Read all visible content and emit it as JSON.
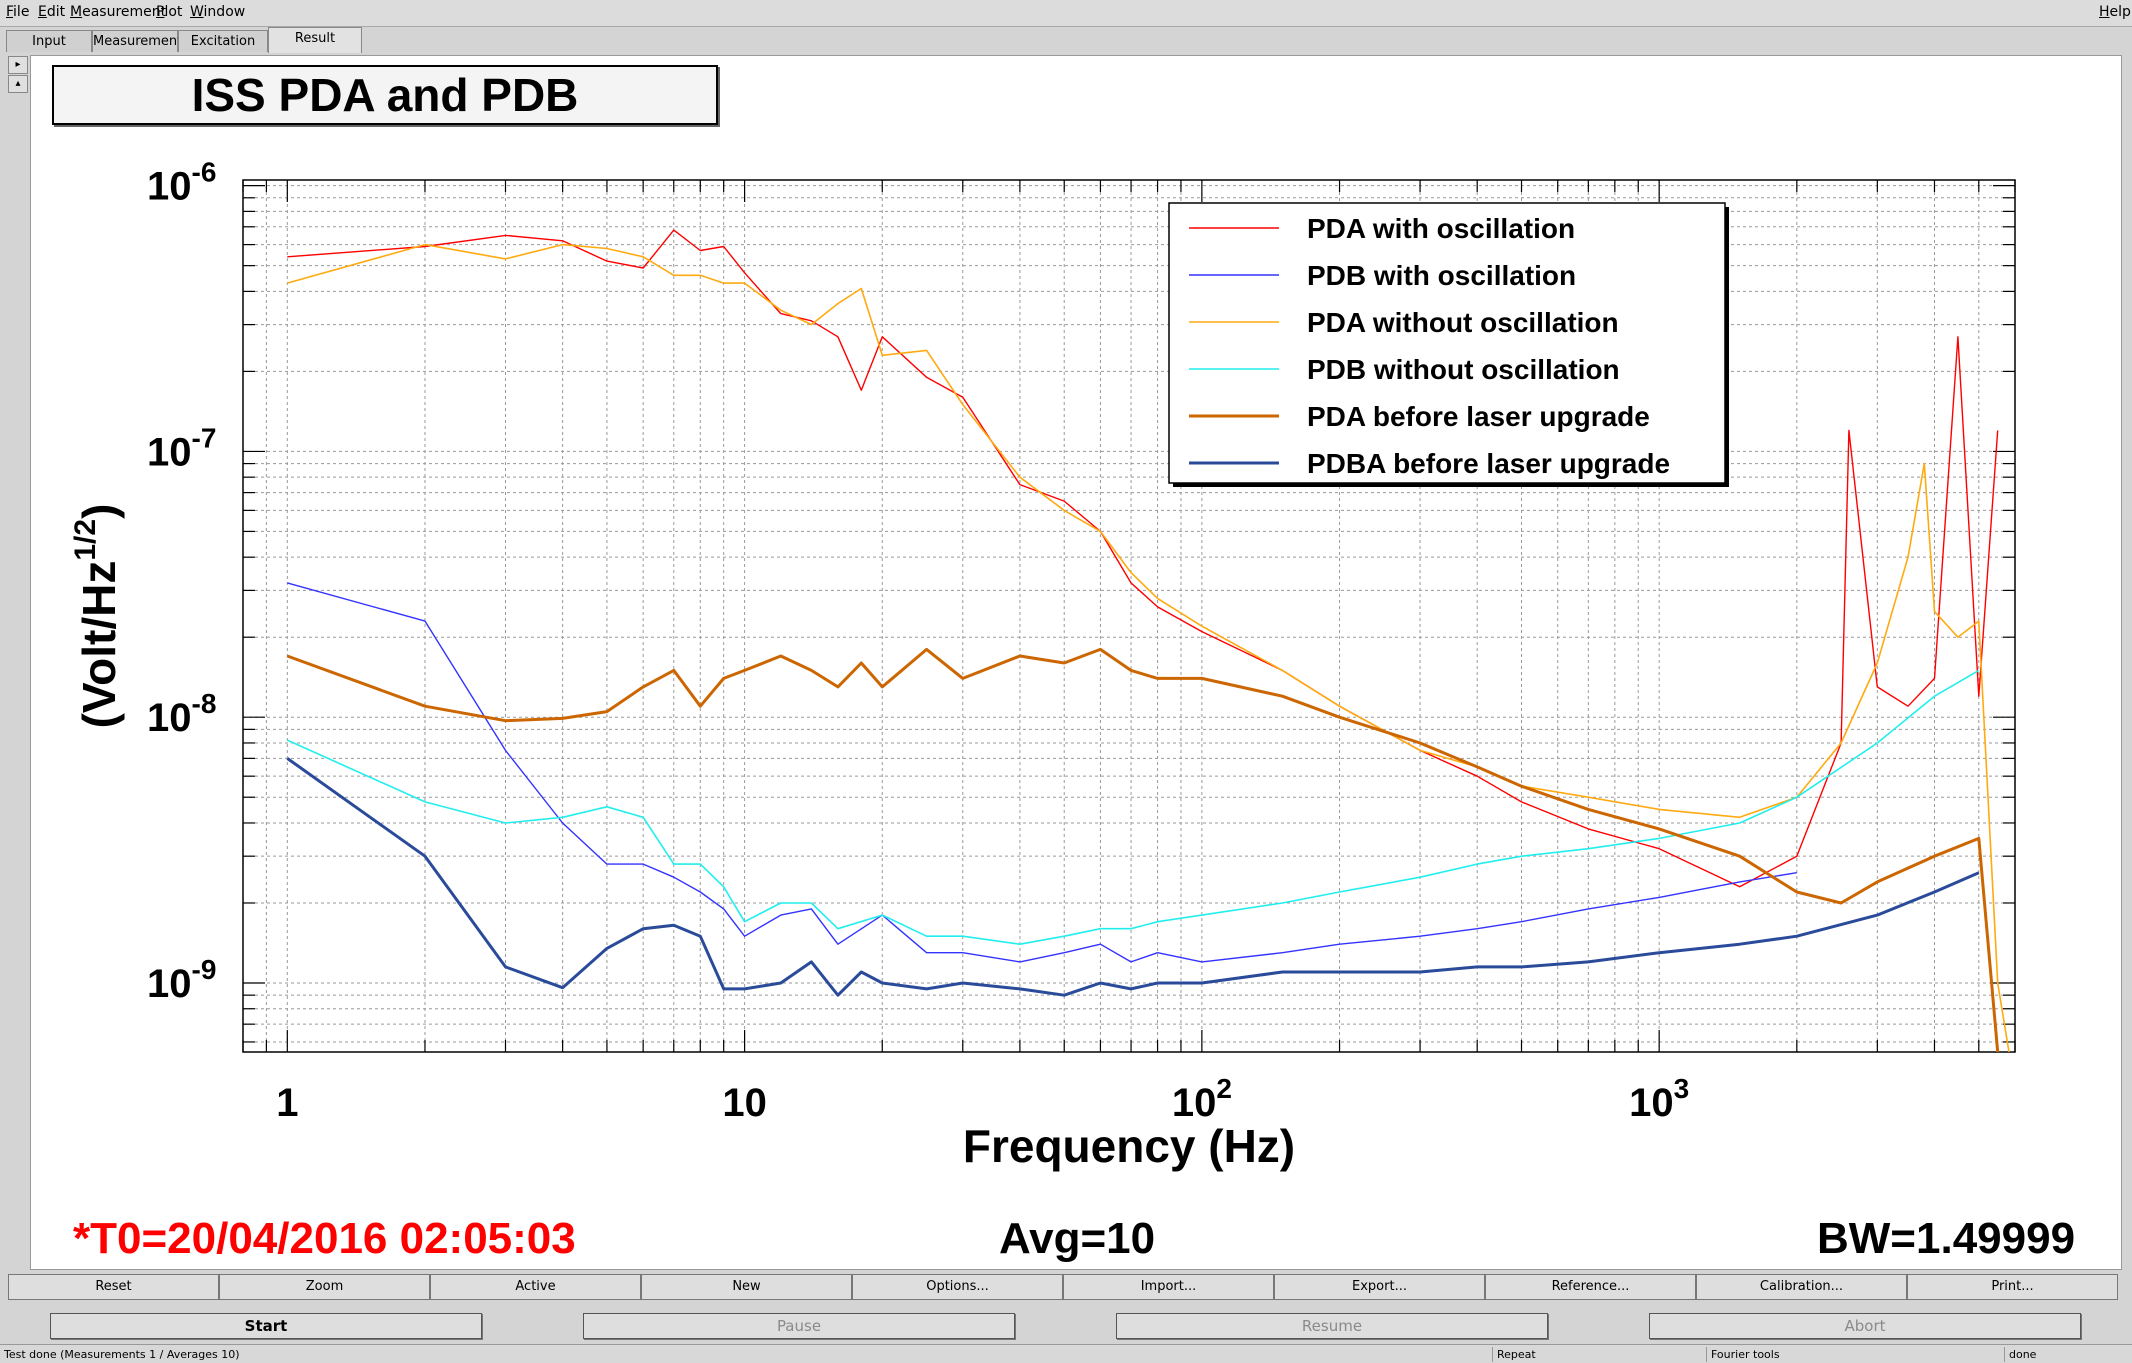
{
  "menu": {
    "file": "File",
    "edit": "Edit",
    "measurement": "Measurement",
    "plot": "Plot",
    "window": "Window",
    "help": "Help"
  },
  "tabs": [
    "Input",
    "Measurement",
    "Excitation",
    "Result"
  ],
  "plot_title": "ISS PDA and PDB",
  "info": {
    "t0": "*T0=20/04/2016 02:05:03",
    "avg": "Avg=10",
    "bw": "BW=1.49999"
  },
  "colors": {
    "t0_text": "#ff0000"
  },
  "action_buttons": [
    "Reset",
    "Zoom",
    "Active",
    "New",
    "Options...",
    "Import...",
    "Export...",
    "Reference...",
    "Calibration...",
    "Print..."
  ],
  "run_buttons": [
    "Start",
    "Pause",
    "Resume",
    "Abort"
  ],
  "status": {
    "main": "Test done (Measurements 1 / Averages 10)",
    "repeat": "Repeat",
    "tools": "Fourier tools",
    "state": "done"
  },
  "chart_data": {
    "type": "line",
    "xlabel": "Frequency (Hz)",
    "ylabel_main": "(Volt/Hz",
    "ylabel_sup": "1/2",
    "ylabel_close": ")",
    "x_scale": "log",
    "y_scale": "log",
    "xlim": [
      0.8,
      6000
    ],
    "ylim": [
      5.5e-10,
      1.05e-06
    ],
    "x_ticks": [
      {
        "value": 1,
        "base": "1",
        "exp": ""
      },
      {
        "value": 10,
        "base": "10",
        "exp": ""
      },
      {
        "value": 100,
        "base": "10",
        "exp": "2"
      },
      {
        "value": 1000,
        "base": "10",
        "exp": "3"
      }
    ],
    "y_ticks": [
      {
        "value": 1e-06,
        "base": "10",
        "exp": "-6"
      },
      {
        "value": 1e-07,
        "base": "10",
        "exp": "-7"
      },
      {
        "value": 1e-08,
        "base": "10",
        "exp": "-8"
      },
      {
        "value": 1e-09,
        "base": "10",
        "exp": "-9"
      }
    ],
    "grid": true,
    "legend_position": "top-right",
    "series": [
      {
        "name": "PDA with oscillation",
        "color": "#ff0000",
        "x": [
          1,
          2,
          3,
          4,
          5,
          6,
          7,
          8,
          9,
          10,
          12,
          14,
          16,
          18,
          20,
          25,
          30,
          40,
          50,
          60,
          70,
          80,
          100,
          150,
          200,
          300,
          400,
          500,
          700,
          1000,
          1500,
          2000,
          2500,
          2600,
          3000,
          3500,
          4000,
          4500,
          5000,
          5500
        ],
        "y": [
          5.4e-07,
          5.9e-07,
          6.5e-07,
          6.2e-07,
          5.2e-07,
          4.9e-07,
          6.8e-07,
          5.7e-07,
          5.9e-07,
          4.7e-07,
          3.3e-07,
          3.1e-07,
          2.7e-07,
          1.7e-07,
          2.7e-07,
          1.9e-07,
          1.6e-07,
          7.5e-08,
          6.5e-08,
          5e-08,
          3.2e-08,
          2.6e-08,
          2.1e-08,
          1.5e-08,
          1.1e-08,
          7.5e-09,
          6e-09,
          4.8e-09,
          3.8e-09,
          3.2e-09,
          2.3e-09,
          3e-09,
          8e-09,
          1.2e-07,
          1.3e-08,
          1.1e-08,
          1.4e-08,
          2.7e-07,
          1.2e-08,
          1.2e-07
        ]
      },
      {
        "name": "PDB with oscillation",
        "color": "#3333ff",
        "x": [
          1,
          2,
          3,
          4,
          5,
          6,
          7,
          8,
          9,
          10,
          12,
          14,
          16,
          20,
          25,
          30,
          40,
          50,
          60,
          70,
          80,
          100,
          150,
          200,
          300,
          400,
          500,
          700,
          1000,
          1500,
          2000
        ],
        "y": [
          3.2e-08,
          2.3e-08,
          7.5e-09,
          4e-09,
          2.8e-09,
          2.8e-09,
          2.5e-09,
          2.2e-09,
          1.9e-09,
          1.5e-09,
          1.8e-09,
          1.9e-09,
          1.4e-09,
          1.8e-09,
          1.3e-09,
          1.3e-09,
          1.2e-09,
          1.3e-09,
          1.4e-09,
          1.2e-09,
          1.3e-09,
          1.2e-09,
          1.3e-09,
          1.4e-09,
          1.5e-09,
          1.6e-09,
          1.7e-09,
          1.9e-09,
          2.1e-09,
          2.4e-09,
          2.6e-09
        ]
      },
      {
        "name": "PDA without oscillation",
        "color": "#ffaa11",
        "x": [
          1,
          2,
          3,
          4,
          5,
          6,
          7,
          8,
          9,
          10,
          12,
          14,
          16,
          18,
          20,
          25,
          30,
          40,
          50,
          60,
          70,
          80,
          100,
          150,
          200,
          300,
          400,
          500,
          700,
          1000,
          1500,
          2000,
          2500,
          3000,
          3500,
          3800,
          4000,
          4500,
          5000,
          5500,
          6000
        ],
        "y": [
          4.3e-07,
          6e-07,
          5.3e-07,
          6e-07,
          5.8e-07,
          5.4e-07,
          4.6e-07,
          4.6e-07,
          4.3e-07,
          4.3e-07,
          3.4e-07,
          3e-07,
          3.6e-07,
          4.1e-07,
          2.3e-07,
          2.4e-07,
          1.5e-07,
          8e-08,
          6e-08,
          5e-08,
          3.5e-08,
          2.8e-08,
          2.2e-08,
          1.5e-08,
          1.1e-08,
          7.5e-09,
          6.5e-09,
          5.5e-09,
          5e-09,
          4.5e-09,
          4.2e-09,
          5e-09,
          8e-09,
          1.6e-08,
          4e-08,
          9e-08,
          2.5e-08,
          2e-08,
          2.3e-08,
          1e-09,
          4e-10
        ]
      },
      {
        "name": "PDB without oscillation",
        "color": "#22eeee",
        "x": [
          1,
          2,
          3,
          4,
          5,
          6,
          7,
          8,
          9,
          10,
          12,
          14,
          16,
          20,
          25,
          30,
          40,
          50,
          60,
          70,
          80,
          100,
          150,
          200,
          300,
          400,
          500,
          700,
          1000,
          1500,
          2000,
          3000,
          4000,
          5000
        ],
        "y": [
          8.2e-09,
          4.8e-09,
          4e-09,
          4.2e-09,
          4.6e-09,
          4.2e-09,
          2.8e-09,
          2.8e-09,
          2.3e-09,
          1.7e-09,
          2e-09,
          2e-09,
          1.6e-09,
          1.8e-09,
          1.5e-09,
          1.5e-09,
          1.4e-09,
          1.5e-09,
          1.6e-09,
          1.6e-09,
          1.7e-09,
          1.8e-09,
          2e-09,
          2.2e-09,
          2.5e-09,
          2.8e-09,
          3e-09,
          3.2e-09,
          3.5e-09,
          4e-09,
          5e-09,
          8e-09,
          1.2e-08,
          1.5e-08
        ]
      },
      {
        "name": "PDA before laser upgrade",
        "color": "#cc6600",
        "x": [
          1,
          2,
          3,
          4,
          5,
          6,
          7,
          8,
          9,
          10,
          12,
          14,
          16,
          18,
          20,
          25,
          30,
          40,
          50,
          60,
          70,
          80,
          100,
          150,
          200,
          300,
          400,
          500,
          700,
          1000,
          1500,
          2000,
          2500,
          3000,
          4000,
          5000,
          5500
        ],
        "y": [
          1.7e-08,
          1.1e-08,
          9.7e-09,
          9.9e-09,
          1.05e-08,
          1.3e-08,
          1.5e-08,
          1.1e-08,
          1.4e-08,
          1.5e-08,
          1.7e-08,
          1.5e-08,
          1.3e-08,
          1.6e-08,
          1.3e-08,
          1.8e-08,
          1.4e-08,
          1.7e-08,
          1.6e-08,
          1.8e-08,
          1.5e-08,
          1.4e-08,
          1.4e-08,
          1.2e-08,
          1e-08,
          8e-09,
          6.5e-09,
          5.5e-09,
          4.5e-09,
          3.8e-09,
          3e-09,
          2.2e-09,
          2e-09,
          2.4e-09,
          3e-09,
          3.5e-09,
          5.5e-10
        ]
      },
      {
        "name": "PDBA before laser upgrade",
        "color": "#2a4a9a",
        "x": [
          1,
          2,
          3,
          4,
          5,
          6,
          7,
          8,
          9,
          10,
          12,
          14,
          16,
          18,
          20,
          25,
          30,
          40,
          50,
          60,
          70,
          80,
          100,
          150,
          200,
          300,
          400,
          500,
          700,
          1000,
          1500,
          2000,
          3000,
          4000,
          5000
        ],
        "y": [
          7e-09,
          3e-09,
          1.15e-09,
          9.6e-10,
          1.35e-09,
          1.6e-09,
          1.65e-09,
          1.5e-09,
          9.5e-10,
          9.5e-10,
          1e-09,
          1.2e-09,
          9e-10,
          1.1e-09,
          1e-09,
          9.5e-10,
          1e-09,
          9.5e-10,
          9e-10,
          1e-09,
          9.5e-10,
          1e-09,
          1e-09,
          1.1e-09,
          1.1e-09,
          1.1e-09,
          1.15e-09,
          1.15e-09,
          1.2e-09,
          1.3e-09,
          1.4e-09,
          1.5e-09,
          1.8e-09,
          2.2e-09,
          2.6e-09
        ]
      }
    ]
  }
}
